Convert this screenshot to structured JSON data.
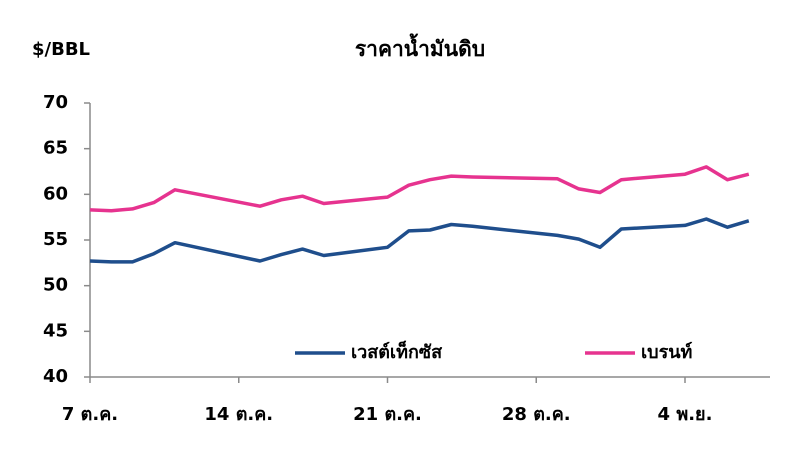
{
  "chart_data": {
    "type": "line",
    "title": "ราคาน้ำมันดิบ",
    "y_label": "$/BBL",
    "x": [
      "10-07",
      "10-08",
      "10-09",
      "10-10",
      "10-11",
      "10-15",
      "10-16",
      "10-17",
      "10-18",
      "10-21",
      "10-22",
      "10-23",
      "10-24",
      "10-25",
      "10-29",
      "10-30",
      "10-31",
      "11-01",
      "11-04",
      "11-05",
      "11-06",
      "11-07"
    ],
    "series": [
      {
        "name": "เวสต์เท็กซัส",
        "color": "#1f4e8c",
        "values": [
          52.7,
          52.6,
          52.6,
          53.5,
          54.7,
          52.7,
          53.4,
          54.0,
          53.3,
          54.2,
          56.0,
          56.1,
          56.7,
          56.5,
          55.5,
          55.1,
          54.2,
          56.2,
          56.6,
          57.3,
          56.4,
          57.1
        ]
      },
      {
        "name": "เบรนท์",
        "color": "#e6338f",
        "values": [
          58.3,
          58.2,
          58.4,
          59.1,
          60.5,
          58.7,
          59.4,
          59.8,
          59.0,
          59.7,
          61.0,
          61.6,
          62.0,
          61.9,
          61.7,
          60.6,
          60.2,
          61.6,
          62.2,
          63.0,
          61.6,
          62.2
        ]
      }
    ],
    "xlim": [
      "10-07",
      "11-08"
    ],
    "xticks": [
      {
        "value": "10-07",
        "label": "7 ต.ค."
      },
      {
        "value": "10-14",
        "label": "14 ต.ค."
      },
      {
        "value": "10-21",
        "label": "21 ต.ค."
      },
      {
        "value": "10-28",
        "label": "28 ต.ค."
      },
      {
        "value": "11-04",
        "label": "4 พ.ย."
      }
    ],
    "ylim": [
      40,
      70
    ],
    "yticks": [
      40,
      45,
      50,
      55,
      60,
      65,
      70
    ],
    "grid": false,
    "legend": "bottom"
  }
}
